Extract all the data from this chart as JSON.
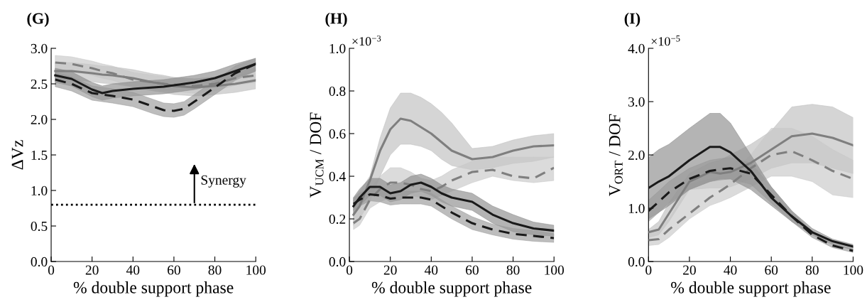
{
  "chart_data": [
    {
      "type": "line",
      "title": "(G)",
      "xlabel": "% double support phase",
      "ylabel": "ΔVz",
      "xlim": [
        0,
        100
      ],
      "xticks": [
        0,
        20,
        40,
        60,
        80,
        100
      ],
      "ylim": [
        0,
        3
      ],
      "yticks": [
        {
          "value": 0,
          "label": "0.0"
        },
        {
          "value": 0.5,
          "label": "0.5"
        },
        {
          "value": 1,
          "label": "1.0"
        },
        {
          "value": 1.5,
          "label": "1.5"
        },
        {
          "value": 2,
          "label": "2.0"
        },
        {
          "value": 2.5,
          "label": "2.5"
        },
        {
          "value": 3,
          "label": "3.0"
        }
      ],
      "x": [
        2,
        10,
        20,
        25,
        30,
        40,
        50,
        55,
        60,
        65,
        70,
        80,
        90,
        100
      ],
      "series": [
        {
          "color": "#7f7f7f",
          "line_style": "solid",
          "values": [
            2.68,
            2.68,
            2.65,
            2.63,
            2.62,
            2.58,
            2.52,
            2.5,
            2.47,
            2.46,
            2.45,
            2.47,
            2.5,
            2.55
          ],
          "lower": [
            2.56,
            2.56,
            2.53,
            2.51,
            2.5,
            2.46,
            2.4,
            2.38,
            2.35,
            2.34,
            2.33,
            2.35,
            2.38,
            2.43
          ],
          "upper": [
            2.8,
            2.8,
            2.77,
            2.75,
            2.74,
            2.7,
            2.64,
            2.62,
            2.59,
            2.58,
            2.57,
            2.59,
            2.62,
            2.67
          ]
        },
        {
          "color": "#7f7f7f",
          "line_style": "dashed",
          "values": [
            2.8,
            2.78,
            2.72,
            2.68,
            2.65,
            2.56,
            2.52,
            2.5,
            2.49,
            2.48,
            2.47,
            2.5,
            2.58,
            2.62
          ],
          "lower": [
            2.7,
            2.68,
            2.62,
            2.58,
            2.55,
            2.46,
            2.42,
            2.4,
            2.39,
            2.38,
            2.37,
            2.4,
            2.48,
            2.52
          ],
          "upper": [
            2.9,
            2.88,
            2.82,
            2.78,
            2.75,
            2.66,
            2.62,
            2.6,
            2.59,
            2.58,
            2.57,
            2.6,
            2.68,
            2.72
          ]
        },
        {
          "color": "#1a1a1a",
          "line_style": "solid",
          "values": [
            2.62,
            2.57,
            2.42,
            2.37,
            2.4,
            2.43,
            2.45,
            2.46,
            2.48,
            2.5,
            2.52,
            2.58,
            2.68,
            2.78
          ],
          "lower": [
            2.52,
            2.47,
            2.32,
            2.27,
            2.3,
            2.33,
            2.35,
            2.36,
            2.38,
            2.4,
            2.42,
            2.48,
            2.58,
            2.68
          ],
          "upper": [
            2.72,
            2.67,
            2.52,
            2.47,
            2.5,
            2.53,
            2.55,
            2.56,
            2.58,
            2.6,
            2.62,
            2.68,
            2.78,
            2.86
          ]
        },
        {
          "color": "#1a1a1a",
          "line_style": "dashed",
          "values": [
            2.56,
            2.5,
            2.37,
            2.35,
            2.33,
            2.28,
            2.18,
            2.13,
            2.12,
            2.15,
            2.25,
            2.45,
            2.65,
            2.78
          ],
          "lower": [
            2.46,
            2.4,
            2.27,
            2.25,
            2.23,
            2.18,
            2.08,
            2.04,
            2.03,
            2.06,
            2.15,
            2.35,
            2.55,
            2.68
          ],
          "upper": [
            2.66,
            2.6,
            2.47,
            2.45,
            2.43,
            2.38,
            2.28,
            2.23,
            2.22,
            2.25,
            2.35,
            2.55,
            2.75,
            2.86
          ]
        }
      ],
      "ref_lines": [
        {
          "axis": "y",
          "value": 0.8,
          "color": "#000000",
          "line_style": "dotted"
        }
      ],
      "annotations": [
        "Synergy"
      ]
    },
    {
      "type": "line",
      "title": "(H)",
      "xlabel": "% double support phase",
      "ylabel": "V$_{UCM}$ / DOF",
      "xlim": [
        0,
        100
      ],
      "xticks": [
        0,
        20,
        40,
        60,
        80,
        100
      ],
      "ylim": [
        0,
        1
      ],
      "yticks": [
        {
          "value": 0,
          "label": "0.0"
        },
        {
          "value": 0.2,
          "label": "0.2"
        },
        {
          "value": 0.4,
          "label": "0.4"
        },
        {
          "value": 0.6,
          "label": "0.6"
        },
        {
          "value": 0.8,
          "label": "0.8"
        },
        {
          "value": 1,
          "label": "1.0"
        }
      ],
      "x": [
        2,
        5,
        10,
        15,
        20,
        25,
        30,
        35,
        40,
        45,
        50,
        60,
        70,
        80,
        90,
        100
      ],
      "series": [
        {
          "color": "#7f7f7f",
          "line_style": "solid",
          "values": [
            0.22,
            0.26,
            0.38,
            0.52,
            0.62,
            0.67,
            0.66,
            0.63,
            0.6,
            0.56,
            0.52,
            0.48,
            0.49,
            0.52,
            0.54,
            0.545
          ],
          "lower": [
            0.17,
            0.2,
            0.28,
            0.4,
            0.5,
            0.55,
            0.55,
            0.54,
            0.52,
            0.48,
            0.45,
            0.43,
            0.44,
            0.46,
            0.47,
            0.49
          ],
          "upper": [
            0.29,
            0.33,
            0.4,
            0.58,
            0.72,
            0.79,
            0.79,
            0.77,
            0.74,
            0.7,
            0.65,
            0.53,
            0.54,
            0.57,
            0.59,
            0.6
          ]
        },
        {
          "color": "#7f7f7f",
          "line_style": "dashed",
          "values": [
            0.18,
            0.2,
            0.29,
            0.34,
            0.37,
            0.37,
            0.36,
            0.34,
            0.33,
            0.35,
            0.38,
            0.42,
            0.43,
            0.4,
            0.39,
            0.44
          ],
          "lower": [
            0.15,
            0.17,
            0.25,
            0.28,
            0.3,
            0.31,
            0.31,
            0.3,
            0.29,
            0.31,
            0.33,
            0.37,
            0.4,
            0.38,
            0.37,
            0.38
          ],
          "upper": [
            0.22,
            0.25,
            0.34,
            0.4,
            0.44,
            0.44,
            0.42,
            0.39,
            0.38,
            0.4,
            0.43,
            0.47,
            0.49,
            0.49,
            0.49,
            0.49
          ]
        },
        {
          "color": "#1a1a1a",
          "line_style": "solid",
          "values": [
            0.26,
            0.3,
            0.35,
            0.35,
            0.32,
            0.33,
            0.36,
            0.37,
            0.35,
            0.32,
            0.3,
            0.28,
            0.22,
            0.18,
            0.155,
            0.145
          ],
          "lower": [
            0.22,
            0.26,
            0.31,
            0.31,
            0.28,
            0.29,
            0.32,
            0.33,
            0.31,
            0.28,
            0.26,
            0.24,
            0.18,
            0.14,
            0.125,
            0.12
          ],
          "upper": [
            0.3,
            0.34,
            0.39,
            0.39,
            0.36,
            0.37,
            0.4,
            0.41,
            0.39,
            0.36,
            0.34,
            0.32,
            0.26,
            0.22,
            0.185,
            0.17
          ]
        },
        {
          "color": "#1a1a1a",
          "line_style": "dashed",
          "values": [
            0.27,
            0.29,
            0.315,
            0.31,
            0.295,
            0.3,
            0.3,
            0.3,
            0.29,
            0.26,
            0.23,
            0.18,
            0.15,
            0.13,
            0.12,
            0.11
          ],
          "lower": [
            0.24,
            0.26,
            0.285,
            0.28,
            0.265,
            0.27,
            0.27,
            0.27,
            0.26,
            0.23,
            0.2,
            0.15,
            0.125,
            0.105,
            0.095,
            0.09
          ],
          "upper": [
            0.3,
            0.32,
            0.345,
            0.34,
            0.325,
            0.33,
            0.33,
            0.33,
            0.32,
            0.29,
            0.26,
            0.21,
            0.175,
            0.155,
            0.145,
            0.13
          ]
        }
      ],
      "annotations": [
        "×10$^{−3}$"
      ]
    },
    {
      "type": "line",
      "title": "(I)",
      "xlabel": "% double support phase",
      "ylabel": "V$_{ORT}$ / DOF",
      "xlim": [
        0,
        100
      ],
      "xticks": [
        0,
        20,
        40,
        60,
        80,
        100
      ],
      "ylim": [
        0,
        4
      ],
      "yticks": [
        {
          "value": 0,
          "label": "0.0"
        },
        {
          "value": 1,
          "label": "1.0"
        },
        {
          "value": 2,
          "label": "2.0"
        },
        {
          "value": 3,
          "label": "3.0"
        },
        {
          "value": 4,
          "label": "4.0"
        }
      ],
      "x": [
        0,
        5,
        10,
        20,
        30,
        35,
        40,
        50,
        60,
        70,
        80,
        90,
        100
      ],
      "series": [
        {
          "color": "#7f7f7f",
          "line_style": "solid",
          "values": [
            0.55,
            0.6,
            0.9,
            1.5,
            1.68,
            1.65,
            1.68,
            1.85,
            2.1,
            2.35,
            2.4,
            2.32,
            2.18
          ],
          "lower": [
            0.45,
            0.5,
            0.75,
            1.35,
            1.38,
            1.38,
            1.4,
            1.55,
            1.75,
            1.85,
            1.85,
            1.75,
            1.65
          ],
          "upper": [
            0.6,
            0.75,
            1.1,
            1.65,
            1.85,
            1.9,
            2.0,
            2.2,
            2.45,
            2.9,
            2.95,
            2.9,
            2.7
          ]
        },
        {
          "color": "#7f7f7f",
          "line_style": "dashed",
          "values": [
            0.4,
            0.42,
            0.6,
            0.9,
            1.2,
            1.32,
            1.45,
            1.75,
            2.0,
            2.07,
            1.9,
            1.7,
            1.55
          ],
          "lower": [
            0.3,
            0.32,
            0.45,
            0.8,
            1.05,
            1.12,
            1.2,
            1.4,
            1.6,
            1.6,
            1.5,
            1.25,
            1.2
          ],
          "upper": [
            0.55,
            0.6,
            0.8,
            1.45,
            1.55,
            1.6,
            1.65,
            2.0,
            2.5,
            2.5,
            2.35,
            2.1,
            1.9
          ]
        },
        {
          "color": "#1a1a1a",
          "line_style": "solid",
          "values": [
            1.38,
            1.5,
            1.6,
            1.9,
            2.15,
            2.15,
            2.05,
            1.7,
            1.2,
            0.85,
            0.55,
            0.38,
            0.28
          ],
          "lower": [
            0.8,
            0.92,
            1.05,
            1.35,
            1.5,
            1.55,
            1.55,
            1.35,
            1.05,
            0.75,
            0.5,
            0.32,
            0.22
          ],
          "upper": [
            1.95,
            2.1,
            2.2,
            2.5,
            2.78,
            2.78,
            2.6,
            2.0,
            1.4,
            0.95,
            0.62,
            0.42,
            0.32
          ]
        },
        {
          "color": "#1a1a1a",
          "line_style": "dashed",
          "values": [
            0.95,
            1.12,
            1.3,
            1.55,
            1.7,
            1.73,
            1.75,
            1.65,
            1.25,
            0.85,
            0.5,
            0.3,
            0.2
          ],
          "lower": [
            0.75,
            0.92,
            1.1,
            1.35,
            1.5,
            1.53,
            1.55,
            1.45,
            1.1,
            0.75,
            0.45,
            0.26,
            0.17
          ],
          "upper": [
            1.15,
            1.32,
            1.5,
            1.75,
            1.9,
            1.93,
            1.95,
            1.85,
            1.4,
            0.95,
            0.55,
            0.34,
            0.23
          ]
        }
      ],
      "annotations": [
        "×10$^{−5}$"
      ]
    }
  ]
}
